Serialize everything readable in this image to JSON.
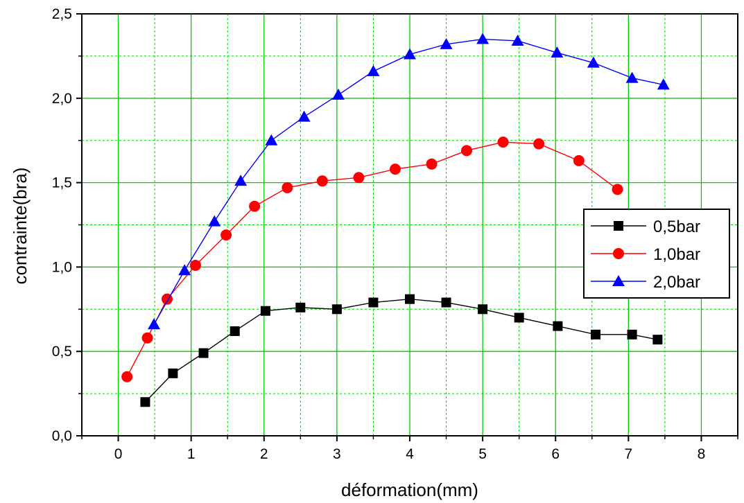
{
  "chart_data": {
    "type": "line",
    "title": "",
    "xlabel": "déformation(mm)",
    "ylabel": "contrainte(bra)",
    "xlim": [
      -0.5,
      8.5
    ],
    "ylim": [
      0.0,
      2.5
    ],
    "x_ticks": [
      0,
      1,
      2,
      3,
      4,
      5,
      6,
      7,
      8
    ],
    "x_tick_labels": [
      "0",
      "1",
      "2",
      "3",
      "4",
      "5",
      "6",
      "7",
      "8"
    ],
    "y_ticks": [
      0.0,
      0.5,
      1.0,
      1.5,
      2.0,
      2.5
    ],
    "y_tick_labels": [
      "0,0",
      "0,5",
      "1,0",
      "1,5",
      "2,0",
      "2,5"
    ],
    "grid": true,
    "grid_color": "#00cc00",
    "legend_position": "right",
    "series": [
      {
        "name": "0,5bar",
        "color": "#000000",
        "marker": "square",
        "points": [
          [
            0.37,
            0.2
          ],
          [
            0.75,
            0.37
          ],
          [
            1.17,
            0.49
          ],
          [
            1.6,
            0.62
          ],
          [
            2.02,
            0.74
          ],
          [
            2.5,
            0.76
          ],
          [
            3.0,
            0.75
          ],
          [
            3.5,
            0.79
          ],
          [
            4.0,
            0.81
          ],
          [
            4.5,
            0.79
          ],
          [
            5.0,
            0.75
          ],
          [
            5.5,
            0.7
          ],
          [
            6.03,
            0.65
          ],
          [
            6.55,
            0.6
          ],
          [
            7.05,
            0.6
          ],
          [
            7.4,
            0.57
          ]
        ]
      },
      {
        "name": "1,0bar",
        "color": "#ff0000",
        "marker": "circle",
        "points": [
          [
            0.12,
            0.35
          ],
          [
            0.4,
            0.58
          ],
          [
            0.67,
            0.81
          ],
          [
            1.06,
            1.01
          ],
          [
            1.48,
            1.19
          ],
          [
            1.87,
            1.36
          ],
          [
            2.32,
            1.47
          ],
          [
            2.8,
            1.51
          ],
          [
            3.3,
            1.53
          ],
          [
            3.8,
            1.58
          ],
          [
            4.3,
            1.61
          ],
          [
            4.78,
            1.69
          ],
          [
            5.28,
            1.74
          ],
          [
            5.77,
            1.73
          ],
          [
            6.32,
            1.63
          ],
          [
            6.85,
            1.46
          ]
        ]
      },
      {
        "name": "2,0bar",
        "color": "#0000ff",
        "marker": "triangle",
        "points": [
          [
            0.49,
            0.66
          ],
          [
            0.91,
            0.98
          ],
          [
            1.32,
            1.27
          ],
          [
            1.68,
            1.51
          ],
          [
            2.1,
            1.75
          ],
          [
            2.55,
            1.89
          ],
          [
            3.02,
            2.02
          ],
          [
            3.5,
            2.16
          ],
          [
            4.0,
            2.26
          ],
          [
            4.5,
            2.32
          ],
          [
            5.0,
            2.35
          ],
          [
            5.48,
            2.34
          ],
          [
            6.02,
            2.27
          ],
          [
            6.52,
            2.21
          ],
          [
            7.05,
            2.12
          ],
          [
            7.48,
            2.08
          ]
        ]
      }
    ]
  }
}
